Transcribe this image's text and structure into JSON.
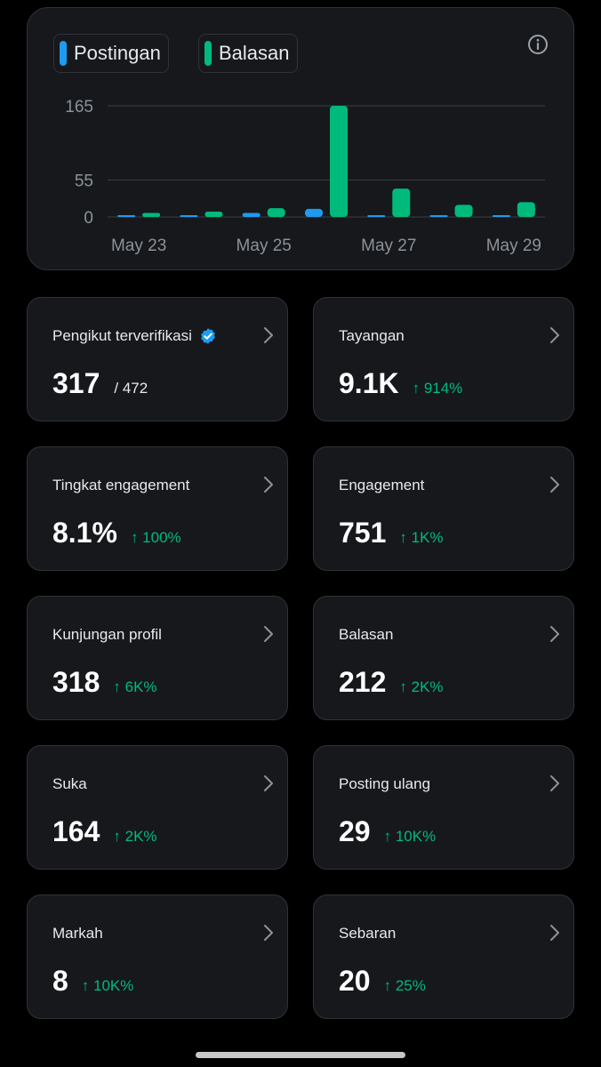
{
  "chart": {
    "legend": [
      {
        "label": "Postingan",
        "color": "#1d9bf0"
      },
      {
        "label": "Balasan",
        "color": "#00ba7c"
      }
    ],
    "info_icon": "info-icon"
  },
  "chart_data": {
    "type": "bar",
    "categories": [
      "May 23",
      "May 24",
      "May 25",
      "May 26",
      "May 27",
      "May 28",
      "May 29"
    ],
    "x_tick_labels": [
      "May 23",
      "May 25",
      "May 27",
      "May 29"
    ],
    "y_ticks": [
      "165",
      "55",
      "0"
    ],
    "ylim": [
      0,
      165
    ],
    "grid": true,
    "series": [
      {
        "name": "Postingan",
        "color": "#1d9bf0",
        "values": [
          2,
          1,
          6,
          12,
          1,
          1,
          1
        ]
      },
      {
        "name": "Balasan",
        "color": "#00ba7c",
        "values": [
          6,
          8,
          13,
          165,
          42,
          18,
          22
        ]
      }
    ]
  },
  "cards": [
    {
      "label": "Pengikut terverifikasi",
      "value": "317",
      "denom": "/ 472",
      "change": "",
      "verified": true
    },
    {
      "label": "Tayangan",
      "value": "9.1K",
      "denom": "",
      "change": "↑ 914%"
    },
    {
      "label": "Tingkat engagement",
      "value": "8.1%",
      "denom": "",
      "change": "↑ 100%"
    },
    {
      "label": "Engagement",
      "value": "751",
      "denom": "",
      "change": "↑ 1K%"
    },
    {
      "label": "Kunjungan profil",
      "value": "318",
      "denom": "",
      "change": "↑ 6K%"
    },
    {
      "label": "Balasan",
      "value": "212",
      "denom": "",
      "change": "↑ 2K%"
    },
    {
      "label": "Suka",
      "value": "164",
      "denom": "",
      "change": "↑ 2K%"
    },
    {
      "label": "Posting ulang",
      "value": "29",
      "denom": "",
      "change": "↑ 10K%"
    },
    {
      "label": "Markah",
      "value": "8",
      "denom": "",
      "change": "↑ 10K%"
    },
    {
      "label": "Sebaran",
      "value": "20",
      "denom": "",
      "change": "↑ 25%"
    }
  ],
  "colors": {
    "background": "#000000",
    "card": "#16181c",
    "border": "#2f3336",
    "positive": "#00ba7c",
    "accent": "#1d9bf0"
  }
}
